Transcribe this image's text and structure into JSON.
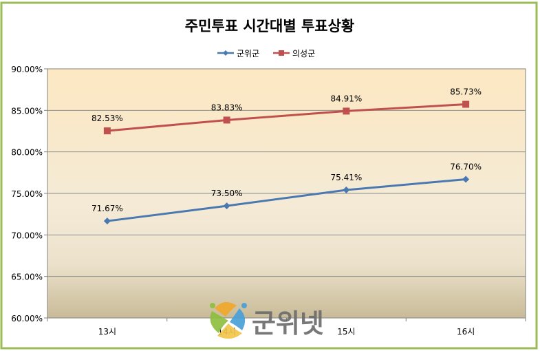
{
  "chart_data": {
    "type": "line",
    "title": "주민투표 시간대별 투표상황",
    "categories": [
      "13시",
      "14시",
      "15시",
      "16시"
    ],
    "series": [
      {
        "name": "군위군",
        "values": [
          71.67,
          73.5,
          75.41,
          76.7
        ],
        "labels": [
          "71.67%",
          "73.50%",
          "75.41%",
          "76.70%"
        ],
        "color": "#4a78b0",
        "marker": "diamond"
      },
      {
        "name": "의성군",
        "values": [
          82.53,
          83.83,
          84.91,
          85.73
        ],
        "labels": [
          "82.53%",
          "83.83%",
          "84.91%",
          "85.73%"
        ],
        "color": "#c0504d",
        "marker": "square"
      }
    ],
    "ylim": [
      60,
      90
    ],
    "yticks": [
      "60.00%",
      "65.00%",
      "70.00%",
      "75.00%",
      "80.00%",
      "85.00%",
      "90.00%"
    ],
    "xlabel": "",
    "ylabel": "",
    "grid": true,
    "legend_position": "top"
  },
  "watermark": {
    "text": "군위넷"
  },
  "colors": {
    "frame_border": "#9bbb59",
    "plot_border": "#808080",
    "grid": "#8c8c8c",
    "bg_top": "#fce8c2",
    "bg_bottom": "#c9bb98"
  }
}
